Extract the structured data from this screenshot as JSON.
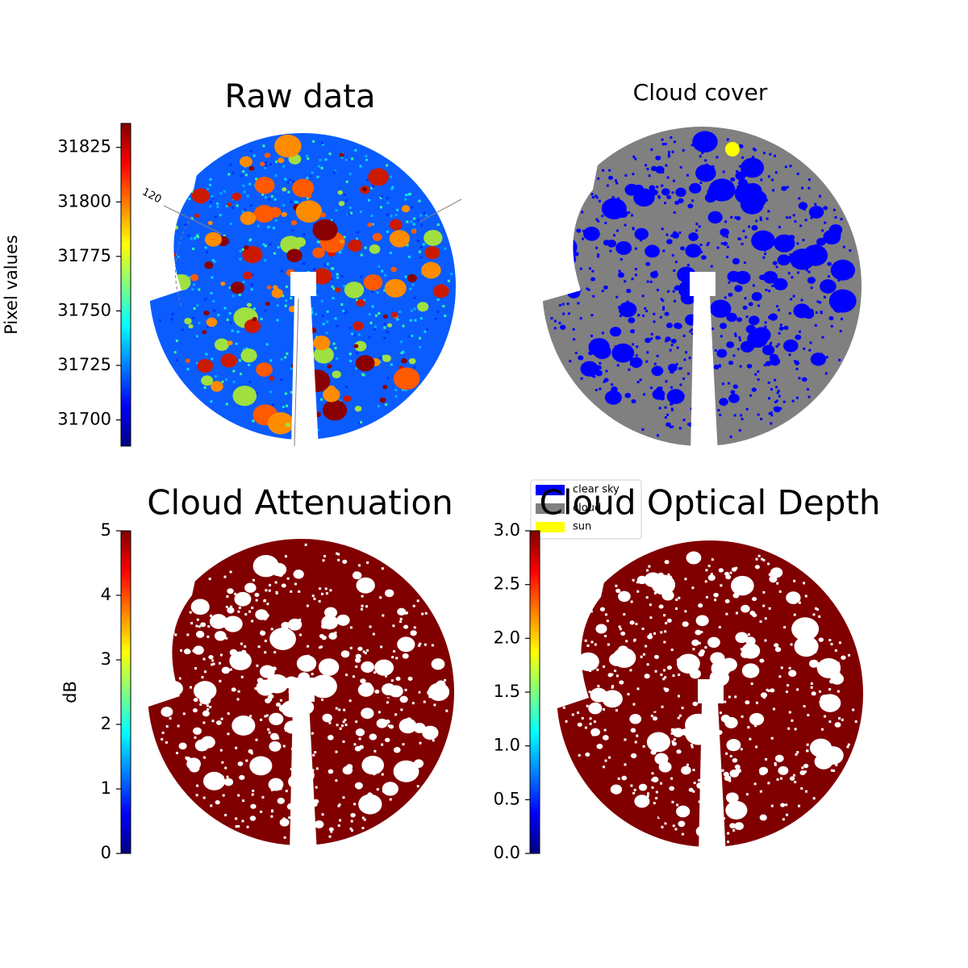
{
  "chart_data": [
    {
      "type": "image",
      "title": "Raw data",
      "colormap": "jet",
      "colorbar": {
        "label": "Pixel values",
        "lim": [
          31688,
          31836
        ],
        "ticks": [
          31700,
          31725,
          31750,
          31775,
          31800,
          31825
        ]
      },
      "annotations": [
        "120"
      ]
    },
    {
      "type": "category-image",
      "title": "Cloud cover",
      "legend": {
        "corner": "lower left",
        "entries": [
          {
            "name": "clear sky",
            "color": "#0000ff"
          },
          {
            "name": "cloud",
            "color": "#808080"
          },
          {
            "name": "sun",
            "color": "#ffff00"
          }
        ]
      }
    },
    {
      "type": "image",
      "title": "Cloud Attenuation",
      "colormap": "jet",
      "colorbar": {
        "label": "dB",
        "lim": [
          0,
          5
        ],
        "ticks": [
          0,
          1,
          2,
          3,
          4,
          5
        ]
      }
    },
    {
      "type": "image",
      "title": "Cloud Optical Depth",
      "colormap": "jet",
      "colorbar": {
        "lim": [
          0,
          3
        ],
        "ticks": [
          {
            "value": 0,
            "label": "0.0"
          },
          {
            "value": 0.5,
            "label": "0.5"
          },
          {
            "value": 1,
            "label": "1.0"
          },
          {
            "value": 1.5,
            "label": "1.5"
          },
          {
            "value": 2,
            "label": "2.0"
          },
          {
            "value": 2.5,
            "label": "2.5"
          },
          {
            "value": 3,
            "label": "3.0"
          }
        ]
      }
    }
  ]
}
